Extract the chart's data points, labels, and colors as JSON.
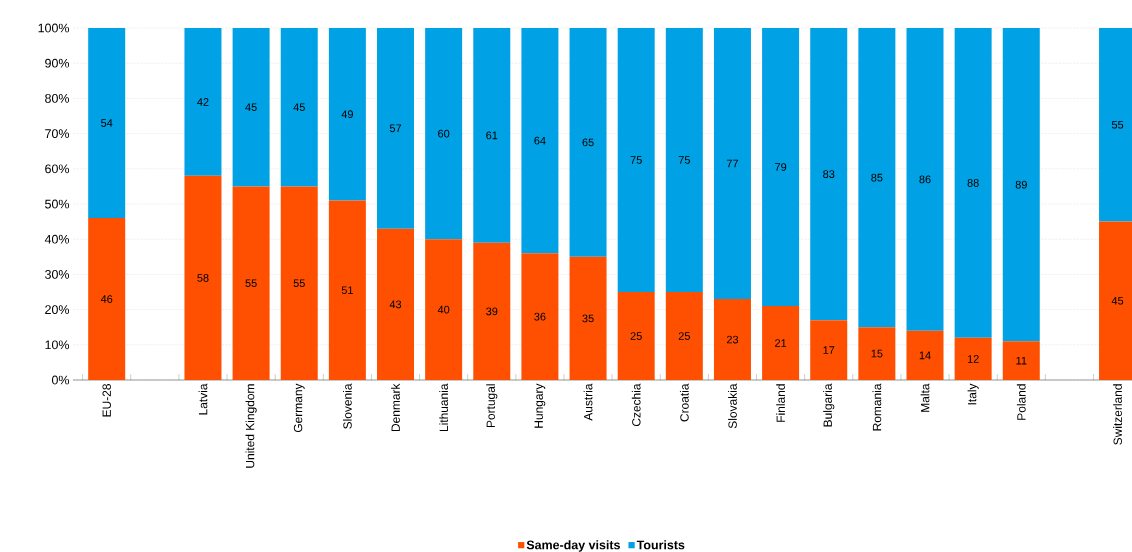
{
  "chart_data": {
    "type": "bar",
    "stacked": true,
    "grid": "y",
    "legend": "bottom",
    "data_labels": true,
    "categories": [
      "EU-28",
      null,
      "Latvia",
      "United Kingdom",
      "Germany",
      "Slovenia",
      "Denmark",
      "Lithuania",
      "Portugal",
      "Hungary",
      "Austria",
      "Czechia",
      "Croatia",
      "Slovakia",
      "Finland",
      "Bulgaria",
      "Romania",
      "Malta",
      "Italy",
      "Poland",
      null,
      "Switzerland"
    ],
    "ylim": [
      0,
      100
    ],
    "yticks": [
      {
        "value": 0,
        "label": "0%"
      },
      {
        "value": 10,
        "label": "10%"
      },
      {
        "value": 20,
        "label": "20%"
      },
      {
        "value": 30,
        "label": "30%"
      },
      {
        "value": 40,
        "label": "40%"
      },
      {
        "value": 50,
        "label": "50%"
      },
      {
        "value": 60,
        "label": "60%"
      },
      {
        "value": 70,
        "label": "70%"
      },
      {
        "value": 80,
        "label": "80%"
      },
      {
        "value": 90,
        "label": "90%"
      },
      {
        "value": 100,
        "label": "100%"
      }
    ],
    "series": [
      {
        "name": "Same-day visits",
        "color": "#fe5000",
        "values": [
          46,
          null,
          58,
          55,
          55,
          51,
          43,
          40,
          39,
          36,
          35,
          25,
          25,
          23,
          21,
          17,
          15,
          14,
          12,
          11,
          null,
          45
        ]
      },
      {
        "name": "Tourists",
        "color": "#00a2e5",
        "values": [
          54,
          null,
          42,
          45,
          45,
          49,
          57,
          60,
          61,
          64,
          65,
          75,
          75,
          77,
          79,
          83,
          85,
          86,
          88,
          89,
          null,
          55
        ]
      }
    ]
  }
}
